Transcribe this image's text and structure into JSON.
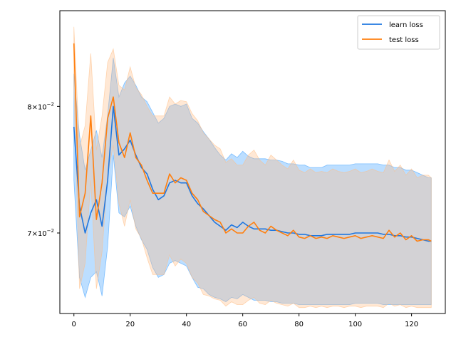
{
  "chart_data": {
    "type": "line",
    "title": "",
    "xlabel": "",
    "ylabel": "",
    "yscale": "log",
    "xlim": [
      -5,
      132
    ],
    "ylim": [
      0.0643,
      0.0885
    ],
    "x_ticks": [
      0,
      20,
      40,
      60,
      80,
      100,
      120
    ],
    "y_ticks": [
      {
        "value": 0.07,
        "mantissa": "7",
        "exp": "−2"
      },
      {
        "value": 0.08,
        "mantissa": "8",
        "exp": "−2"
      }
    ],
    "legend": {
      "placement": "top-right",
      "entries": [
        "learn loss",
        "test loss"
      ]
    },
    "grid": false,
    "series": [
      {
        "name": "learn loss",
        "color": "#1f77e0",
        "band_color": "#3fa0ff",
        "x": [
          0,
          2,
          4,
          6,
          8,
          10,
          12,
          14,
          16,
          18,
          20,
          22,
          24,
          26,
          28,
          30,
          32,
          34,
          36,
          38,
          40,
          42,
          44,
          46,
          48,
          50,
          52,
          54,
          56,
          58,
          60,
          62,
          64,
          66,
          68,
          70,
          72,
          74,
          76,
          78,
          80,
          82,
          84,
          86,
          88,
          90,
          92,
          94,
          96,
          98,
          100,
          102,
          104,
          106,
          108,
          110,
          112,
          114,
          116,
          118,
          120,
          122,
          124,
          126,
          127
        ],
        "values": [
          0.0783,
          0.072,
          0.07,
          0.0715,
          0.0725,
          0.0705,
          0.074,
          0.08,
          0.076,
          0.0765,
          0.0772,
          0.076,
          0.075,
          0.0745,
          0.0733,
          0.0725,
          0.0728,
          0.0738,
          0.074,
          0.0738,
          0.0738,
          0.0728,
          0.0722,
          0.0718,
          0.0713,
          0.0708,
          0.0705,
          0.0702,
          0.0706,
          0.0704,
          0.0708,
          0.0705,
          0.0703,
          0.0703,
          0.0703,
          0.0702,
          0.0702,
          0.0701,
          0.07,
          0.07,
          0.0699,
          0.0699,
          0.0698,
          0.0698,
          0.0698,
          0.0699,
          0.0699,
          0.0699,
          0.0699,
          0.0699,
          0.07,
          0.07,
          0.07,
          0.07,
          0.07,
          0.0699,
          0.0699,
          0.0698,
          0.0698,
          0.0697,
          0.0697,
          0.0696,
          0.0695,
          0.0694,
          0.0694
        ],
        "lower": [
          0.074,
          0.0668,
          0.0654,
          0.0668,
          0.0672,
          0.0655,
          0.069,
          0.076,
          0.0715,
          0.0712,
          0.072,
          0.0705,
          0.0695,
          0.0688,
          0.0675,
          0.0668,
          0.067,
          0.0678,
          0.068,
          0.0678,
          0.0676,
          0.0668,
          0.0661,
          0.066,
          0.0656,
          0.0654,
          0.0653,
          0.0651,
          0.0654,
          0.0653,
          0.0656,
          0.0654,
          0.0652,
          0.0652,
          0.0652,
          0.0651,
          0.0651,
          0.065,
          0.065,
          0.065,
          0.0649,
          0.0649,
          0.0649,
          0.0649,
          0.0649,
          0.0649,
          0.0649,
          0.0649,
          0.0649,
          0.0649,
          0.065,
          0.065,
          0.065,
          0.065,
          0.065,
          0.0649,
          0.0649,
          0.0649,
          0.0649,
          0.0649,
          0.0649,
          0.0649,
          0.0649,
          0.0649,
          0.0649
        ],
        "upper": [
          0.0828,
          0.0776,
          0.0748,
          0.0764,
          0.078,
          0.0758,
          0.0793,
          0.0842,
          0.0808,
          0.082,
          0.0826,
          0.0818,
          0.0808,
          0.0804,
          0.0795,
          0.0786,
          0.079,
          0.08,
          0.0802,
          0.08,
          0.0802,
          0.079,
          0.0786,
          0.0779,
          0.0773,
          0.0766,
          0.076,
          0.0756,
          0.0761,
          0.0758,
          0.0763,
          0.0759,
          0.0757,
          0.0757,
          0.0757,
          0.0756,
          0.0756,
          0.0755,
          0.0753,
          0.0753,
          0.0752,
          0.0752,
          0.075,
          0.075,
          0.075,
          0.0752,
          0.0752,
          0.0752,
          0.0752,
          0.0752,
          0.0753,
          0.0753,
          0.0753,
          0.0753,
          0.0753,
          0.0752,
          0.0752,
          0.075,
          0.075,
          0.0748,
          0.0748,
          0.0746,
          0.0744,
          0.0742,
          0.0742
        ]
      },
      {
        "name": "test loss",
        "color": "#ff7f0e",
        "band_color": "#ffbe86",
        "x": [
          0,
          2,
          4,
          6,
          8,
          10,
          12,
          14,
          16,
          18,
          20,
          22,
          24,
          26,
          28,
          30,
          32,
          34,
          36,
          38,
          40,
          42,
          44,
          46,
          48,
          50,
          52,
          54,
          56,
          58,
          60,
          62,
          64,
          66,
          68,
          70,
          72,
          74,
          76,
          78,
          80,
          82,
          84,
          86,
          88,
          90,
          92,
          94,
          96,
          98,
          100,
          102,
          104,
          106,
          108,
          110,
          112,
          114,
          116,
          118,
          120,
          122,
          124,
          126,
          127
        ],
        "values": [
          0.0855,
          0.0712,
          0.073,
          0.0792,
          0.071,
          0.0738,
          0.079,
          0.0808,
          0.077,
          0.0758,
          0.0778,
          0.0758,
          0.0752,
          0.074,
          0.073,
          0.073,
          0.073,
          0.0745,
          0.0738,
          0.0742,
          0.074,
          0.073,
          0.0725,
          0.0716,
          0.0713,
          0.071,
          0.0708,
          0.07,
          0.0703,
          0.07,
          0.07,
          0.0705,
          0.0708,
          0.0702,
          0.07,
          0.0705,
          0.0702,
          0.07,
          0.0698,
          0.0702,
          0.0697,
          0.0696,
          0.0698,
          0.0696,
          0.0697,
          0.0696,
          0.0698,
          0.0697,
          0.0696,
          0.0697,
          0.0698,
          0.0696,
          0.0697,
          0.0698,
          0.0697,
          0.0696,
          0.0702,
          0.0697,
          0.07,
          0.0695,
          0.0698,
          0.0694,
          0.0695,
          0.0695,
          0.0694
        ],
        "lower": [
          0.0816,
          0.066,
          0.0678,
          0.074,
          0.066,
          0.0686,
          0.0744,
          0.0768,
          0.0722,
          0.0705,
          0.0725,
          0.0703,
          0.0696,
          0.0682,
          0.067,
          0.067,
          0.067,
          0.0684,
          0.0676,
          0.0681,
          0.0678,
          0.0668,
          0.0664,
          0.0656,
          0.0655,
          0.0653,
          0.0652,
          0.0648,
          0.0651,
          0.0649,
          0.0649,
          0.0652,
          0.0654,
          0.065,
          0.0649,
          0.0652,
          0.065,
          0.0649,
          0.0648,
          0.065,
          0.0647,
          0.0647,
          0.0648,
          0.0647,
          0.0648,
          0.0647,
          0.0648,
          0.0648,
          0.0647,
          0.0648,
          0.0648,
          0.0647,
          0.0648,
          0.0648,
          0.0648,
          0.0647,
          0.065,
          0.0648,
          0.0649,
          0.0647,
          0.0648,
          0.0647,
          0.0647,
          0.0647,
          0.0647
        ],
        "upper": [
          0.087,
          0.0766,
          0.0784,
          0.0846,
          0.0764,
          0.0792,
          0.0838,
          0.085,
          0.0818,
          0.0814,
          0.0834,
          0.0816,
          0.081,
          0.08,
          0.0792,
          0.0792,
          0.0792,
          0.0808,
          0.0802,
          0.0805,
          0.0804,
          0.0794,
          0.0788,
          0.0778,
          0.0773,
          0.0768,
          0.0765,
          0.0754,
          0.0757,
          0.0752,
          0.0752,
          0.076,
          0.0764,
          0.0756,
          0.0752,
          0.076,
          0.0756,
          0.0752,
          0.0749,
          0.0756,
          0.0748,
          0.0746,
          0.0749,
          0.0746,
          0.0747,
          0.0746,
          0.0749,
          0.0747,
          0.0746,
          0.0747,
          0.0749,
          0.0746,
          0.0747,
          0.0749,
          0.0747,
          0.0746,
          0.0756,
          0.0747,
          0.0752,
          0.0744,
          0.0749,
          0.0742,
          0.0744,
          0.0744,
          0.0742
        ]
      }
    ]
  }
}
